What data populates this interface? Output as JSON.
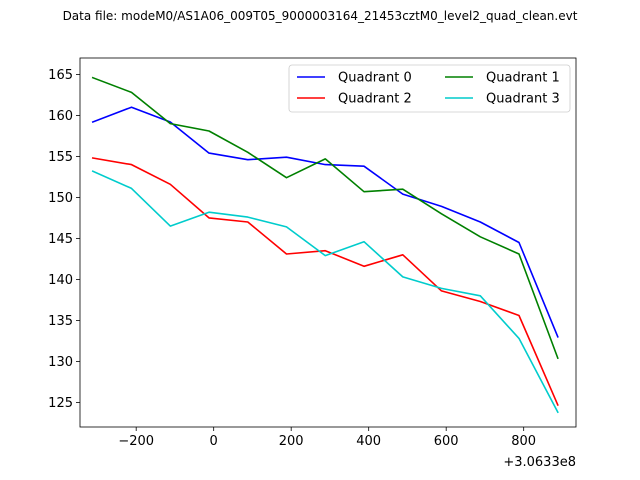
{
  "chart_data": {
    "type": "line",
    "title": "Data file: modeM0/AS1A06_009T05_9000003164_21453cztM0_level2_quad_clean.evt",
    "xlabel": "",
    "ylabel": "",
    "x_offset_label": "+3.0633e8",
    "xlim": [
      -345,
      935
    ],
    "ylim": [
      122,
      167
    ],
    "xticks": [
      -200,
      0,
      200,
      400,
      600,
      800
    ],
    "xtick_labels": [
      "−200",
      "0",
      "200",
      "400",
      "600",
      "800"
    ],
    "yticks": [
      125,
      130,
      135,
      140,
      145,
      150,
      155,
      160,
      165
    ],
    "ytick_labels": [
      "125",
      "130",
      "135",
      "140",
      "145",
      "150",
      "155",
      "160",
      "165"
    ],
    "grid": false,
    "legend_position": "top-right",
    "x": [
      -312,
      -212,
      -112,
      -12,
      88,
      188,
      288,
      388,
      488,
      588,
      688,
      788,
      888
    ],
    "series": [
      {
        "name": "Quadrant 0",
        "color": "#0000ff",
        "values": [
          159.2,
          161.0,
          159.2,
          155.4,
          154.6,
          154.9,
          154.0,
          153.8,
          150.4,
          148.9,
          147.0,
          144.5,
          133.0
        ]
      },
      {
        "name": "Quadrant 1",
        "color": "#008000",
        "values": [
          164.6,
          162.8,
          159.0,
          158.1,
          155.5,
          152.4,
          154.7,
          150.7,
          151.0,
          148.0,
          145.2,
          143.1,
          130.4
        ]
      },
      {
        "name": "Quadrant 2",
        "color": "#ff0000",
        "values": [
          154.8,
          154.0,
          151.6,
          147.5,
          147.0,
          143.1,
          143.5,
          141.6,
          143.0,
          138.6,
          137.3,
          135.6,
          124.7
        ]
      },
      {
        "name": "Quadrant 3",
        "color": "#00cccc",
        "values": [
          153.2,
          151.1,
          146.5,
          148.2,
          147.6,
          146.4,
          142.9,
          144.6,
          140.3,
          138.9,
          138.0,
          132.8,
          123.8
        ]
      }
    ]
  }
}
